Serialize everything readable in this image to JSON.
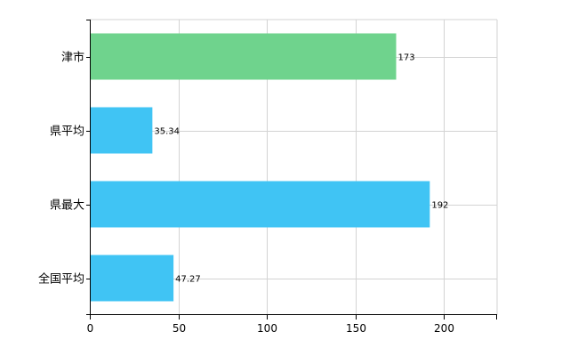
{
  "chart_data": {
    "type": "bar",
    "orientation": "horizontal",
    "categories": [
      "津市",
      "県平均",
      "県最大",
      "全国平均"
    ],
    "values": [
      173,
      35.34,
      192,
      47.27
    ],
    "value_labels": [
      "173",
      "35.34",
      "192",
      "47.27"
    ],
    "bar_colors": [
      "#6fd38d",
      "#40c4f4",
      "#40c4f4",
      "#40c4f4"
    ],
    "xlim": [
      0,
      230
    ],
    "xticks": [
      0,
      50,
      100,
      150,
      200
    ],
    "xtick_labels": [
      "0",
      "50",
      "100",
      "150",
      "200"
    ],
    "grid": true,
    "grid_color": "#d3d3d3",
    "axis_color": "#000000"
  }
}
